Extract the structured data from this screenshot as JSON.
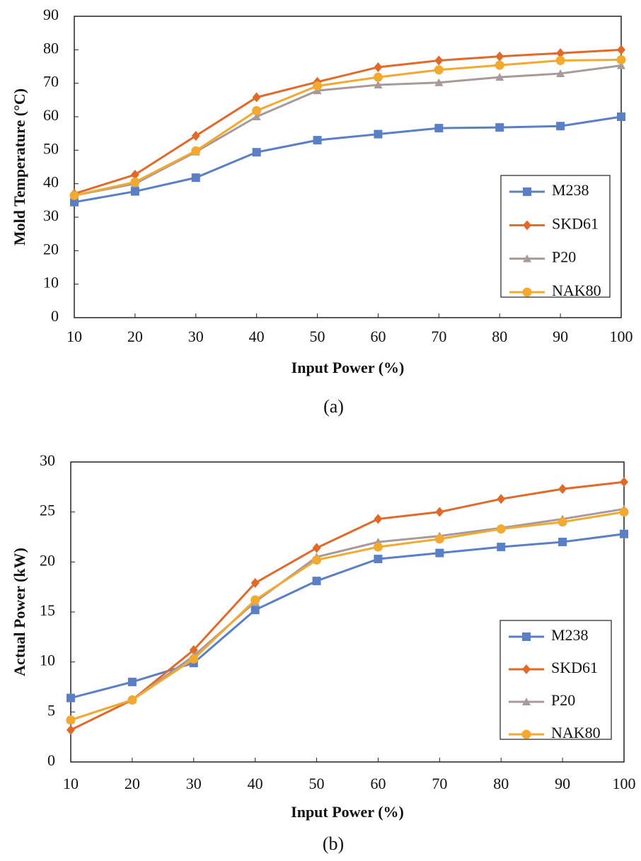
{
  "chart_data": [
    {
      "type": "line",
      "caption": "(a)",
      "x_label": "Input Power (%)",
      "y_label": "Mold Temperature (°C)",
      "x": [
        10,
        20,
        30,
        40,
        50,
        60,
        70,
        80,
        90,
        100
      ],
      "series": [
        {
          "name": "M238",
          "color": "#5b7fc4",
          "marker": "square",
          "values": [
            34.5,
            37.7,
            41.8,
            49.4,
            53,
            54.8,
            56.6,
            56.8,
            57.2,
            60
          ]
        },
        {
          "name": "SKD61",
          "color": "#e06a2a",
          "marker": "diamond",
          "values": [
            37,
            42.7,
            54.3,
            65.8,
            70.4,
            74.8,
            76.8,
            78,
            79,
            80
          ]
        },
        {
          "name": "P20",
          "color": "#a89a9a",
          "marker": "triangle",
          "values": [
            36.5,
            40,
            49.5,
            60,
            67.8,
            69.5,
            70.2,
            71.8,
            72.9,
            75.3
          ]
        },
        {
          "name": "NAK80",
          "color": "#f2a930",
          "marker": "circle",
          "values": [
            36.5,
            40.5,
            49.8,
            61.8,
            69.2,
            71.8,
            74,
            75.4,
            76.8,
            77
          ]
        }
      ],
      "xlim": [
        10,
        100
      ],
      "xticks": [
        10,
        20,
        30,
        40,
        50,
        60,
        70,
        80,
        90,
        100
      ],
      "ylim": [
        0,
        90
      ],
      "yticks": [
        0,
        10,
        20,
        30,
        40,
        50,
        60,
        70,
        80,
        90
      ],
      "grid": false,
      "legend": "lower-right"
    },
    {
      "type": "line",
      "caption": "(b)",
      "x_label": "Input Power (%)",
      "y_label": "Actual Power (kW)",
      "x": [
        10,
        20,
        30,
        40,
        50,
        60,
        70,
        80,
        90,
        100
      ],
      "series": [
        {
          "name": "M238",
          "color": "#5b7fc4",
          "marker": "square",
          "values": [
            6.4,
            8.0,
            9.9,
            15.2,
            18.1,
            20.3,
            20.9,
            21.5,
            22.0,
            22.8
          ]
        },
        {
          "name": "SKD61",
          "color": "#e06a2a",
          "marker": "diamond",
          "values": [
            3.2,
            6.2,
            11.2,
            17.9,
            21.4,
            24.3,
            25.0,
            26.3,
            27.3,
            28.0
          ]
        },
        {
          "name": "P20",
          "color": "#a89a9a",
          "marker": "triangle",
          "values": [
            4.2,
            6.2,
            10.6,
            16.0,
            20.5,
            22.0,
            22.6,
            23.4,
            24.3,
            25.3
          ]
        },
        {
          "name": "NAK80",
          "color": "#f2a930",
          "marker": "circle",
          "values": [
            4.2,
            6.2,
            10.3,
            16.2,
            20.2,
            21.5,
            22.3,
            23.3,
            24.0,
            25.0
          ]
        }
      ],
      "xlim": [
        10,
        100
      ],
      "xticks": [
        10,
        20,
        30,
        40,
        50,
        60,
        70,
        80,
        90,
        100
      ],
      "ylim": [
        0,
        30
      ],
      "yticks": [
        0,
        5,
        10,
        15,
        20,
        25,
        30
      ],
      "grid": false,
      "legend": "lower-right"
    }
  ]
}
